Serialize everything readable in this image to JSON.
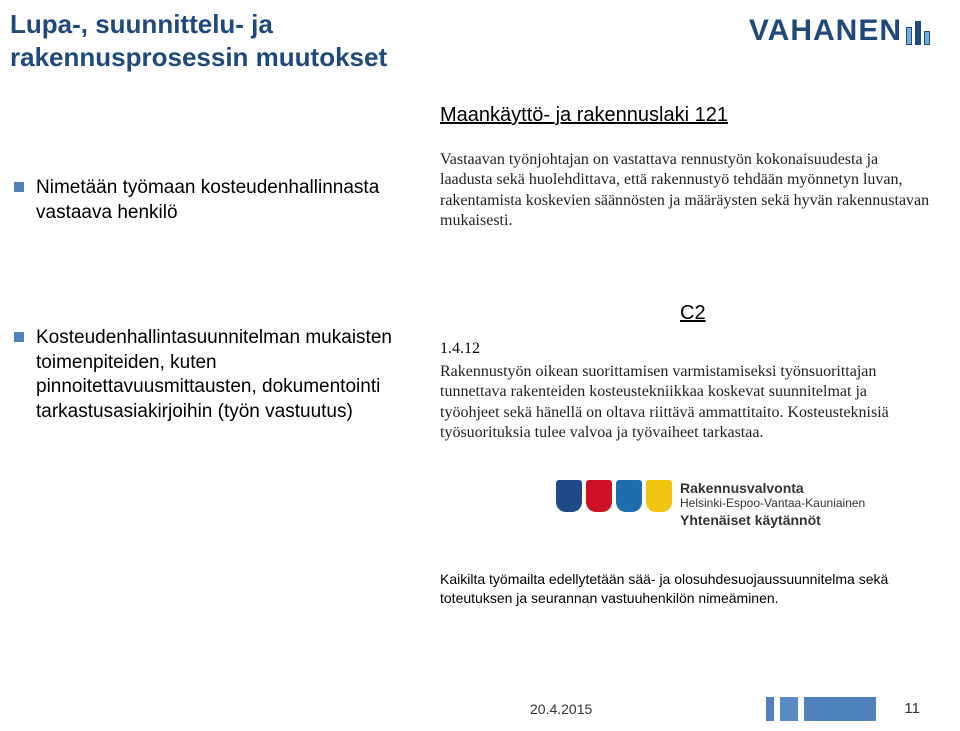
{
  "title": {
    "line1": "Lupa-, suunnittelu- ja",
    "line2": "rakennusprosessin muutokset"
  },
  "logo": {
    "text": "VAHANEN"
  },
  "law_ref": "Maankäyttö- ja rakennuslaki 121",
  "left": {
    "item1": "Nimetään työmaan kosteudenhallinnasta vastaava henkilö",
    "item2": "Kosteudenhallintasuunnitelman mukaisten toimenpiteiden, kuten pinnoitettavuusmittausten, dokumentointi tarkastusasiakirjoihin (työn vastuutus)"
  },
  "right_para1": "Vastaavan työnjohtajan on vastattava rennustyön kokonaisuudesta ja laadusta sekä huolehdittava, että rakennustyö tehdään myönnetyn luvan, rakentamista koskevien säännösten ja määräysten sekä hyvän rakennustavan mukaisesti.",
  "c2_label": "C2",
  "section_num": "1.4.12",
  "right_para2": "Rakennustyön oikean suorittamisen varmistamiseksi työnsuorittajan tunnettava rakenteiden kosteustekniikkaa koskevat suunnitelmat ja työohjeet sekä hänellä on oltava riittävä ammattitaito. Kosteusteknisiä työsuorituksia tulee valvoa ja työvaiheet tarkastaa.",
  "rv": {
    "title": "Rakennusvalvonta",
    "sub": "Helsinki-Espoo-Vantaa-Kauniainen",
    "tag": "Yhtenäiset käytännöt"
  },
  "right_para3": "Kaikilta työmailta edellytetään sää- ja olosuhdesuojaussuunnitelma sekä toteutuksen ja seurannan vastuuhenkilön nimeäminen.",
  "footer": {
    "date": "20.4.2015",
    "page": "11"
  }
}
